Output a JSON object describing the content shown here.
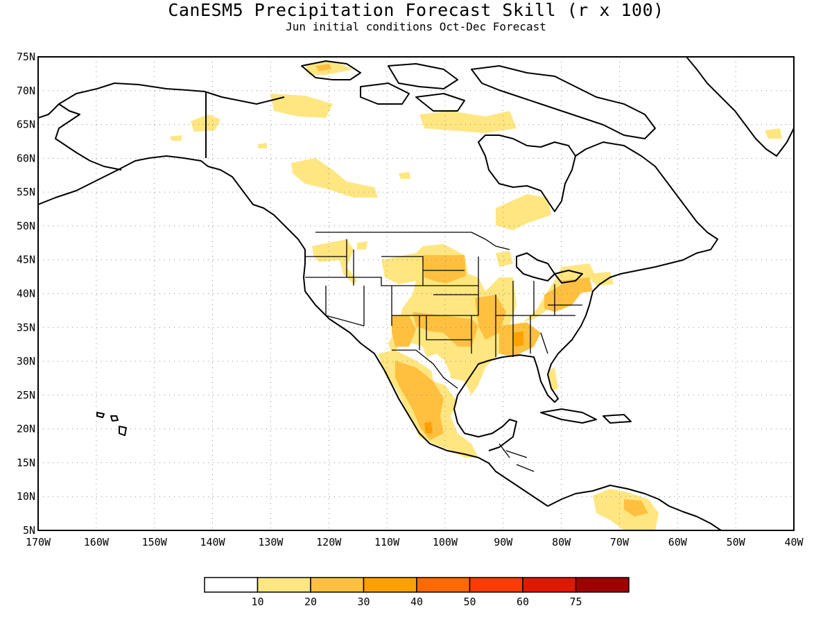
{
  "title": "CanESM5 Precipitation Forecast Skill (r x 100)",
  "subtitle": "Jun initial conditions  Oct-Dec Forecast",
  "map": {
    "lon_range": [
      -170,
      -40
    ],
    "lat_range": [
      5,
      75
    ],
    "lat_labels": [
      "75N",
      "70N",
      "65N",
      "60N",
      "55N",
      "50N",
      "45N",
      "40N",
      "35N",
      "30N",
      "25N",
      "20N",
      "15N",
      "10N",
      "5N"
    ],
    "lon_labels": [
      "170W",
      "160W",
      "150W",
      "140W",
      "130W",
      "120W",
      "110W",
      "100W",
      "90W",
      "80W",
      "70W",
      "60W",
      "50W",
      "40W"
    ],
    "gridlines": "dotted"
  },
  "colorbar": {
    "labels": [
      "10",
      "20",
      "30",
      "40",
      "50",
      "60",
      "75"
    ],
    "colors": [
      "#ffffff",
      "#ffe680",
      "#ffc040",
      "#ffa000",
      "#ff6a00",
      "#ff3c00",
      "#e01800",
      "#a00000"
    ]
  },
  "colors": {
    "land_outline": "#000000",
    "skill_10_20": "#ffe680",
    "skill_20_30": "#ffc040",
    "skill_30_40": "#ffa000"
  }
}
